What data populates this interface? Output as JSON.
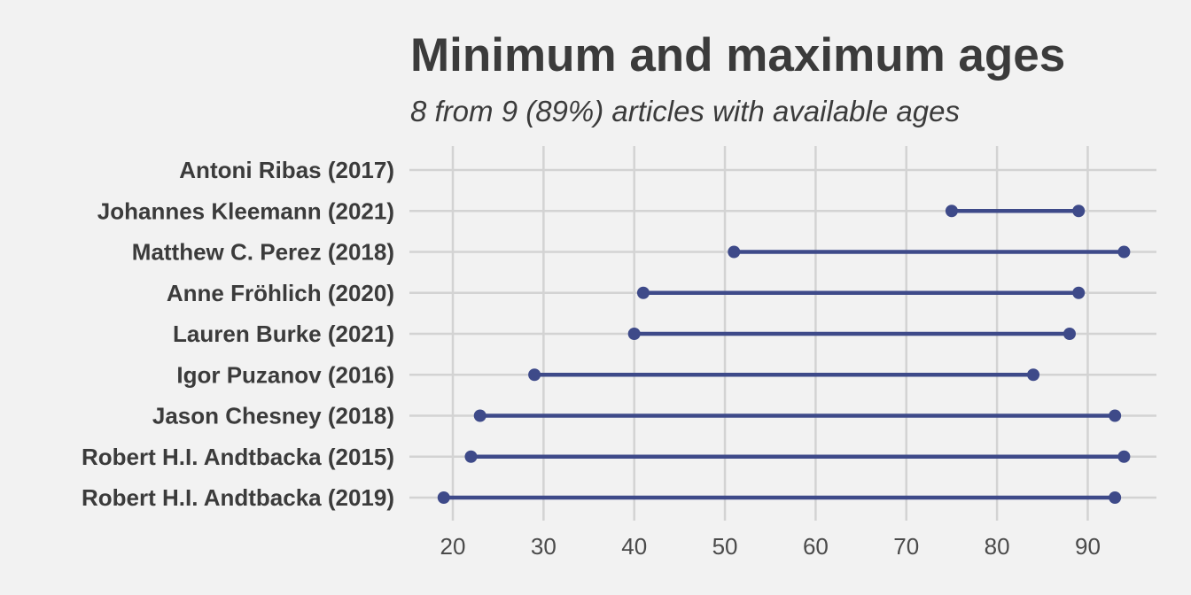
{
  "chart_data": {
    "type": "dumbbell",
    "title": "Minimum and maximum ages",
    "subtitle": "8 from 9 (89%) articles with available ages",
    "xlabel": "",
    "ylabel": "",
    "xlim": [
      15,
      98
    ],
    "x_ticks": [
      20,
      30,
      40,
      50,
      60,
      70,
      80,
      90
    ],
    "x_tick_labels": [
      "20",
      "30",
      "40",
      "50",
      "60",
      "70",
      "80",
      "90"
    ],
    "grid": true,
    "color": "#3e4a89",
    "rows": [
      {
        "label": "Antoni Ribas (2017)",
        "min": null,
        "max": null
      },
      {
        "label": "Johannes Kleemann (2021)",
        "min": 75,
        "max": 89
      },
      {
        "label": "Matthew C. Perez (2018)",
        "min": 51,
        "max": 94
      },
      {
        "label": "Anne Fröhlich (2020)",
        "min": 41,
        "max": 89
      },
      {
        "label": "Lauren Burke (2021)",
        "min": 40,
        "max": 88
      },
      {
        "label": "Igor Puzanov (2016)",
        "min": 29,
        "max": 84
      },
      {
        "label": "Jason Chesney (2018)",
        "min": 23,
        "max": 93
      },
      {
        "label": "Robert H.I. Andtbacka (2015)",
        "min": 22,
        "max": 94
      },
      {
        "label": "Robert H.I. Andtbacka (2019)",
        "min": 19,
        "max": 93
      }
    ]
  }
}
